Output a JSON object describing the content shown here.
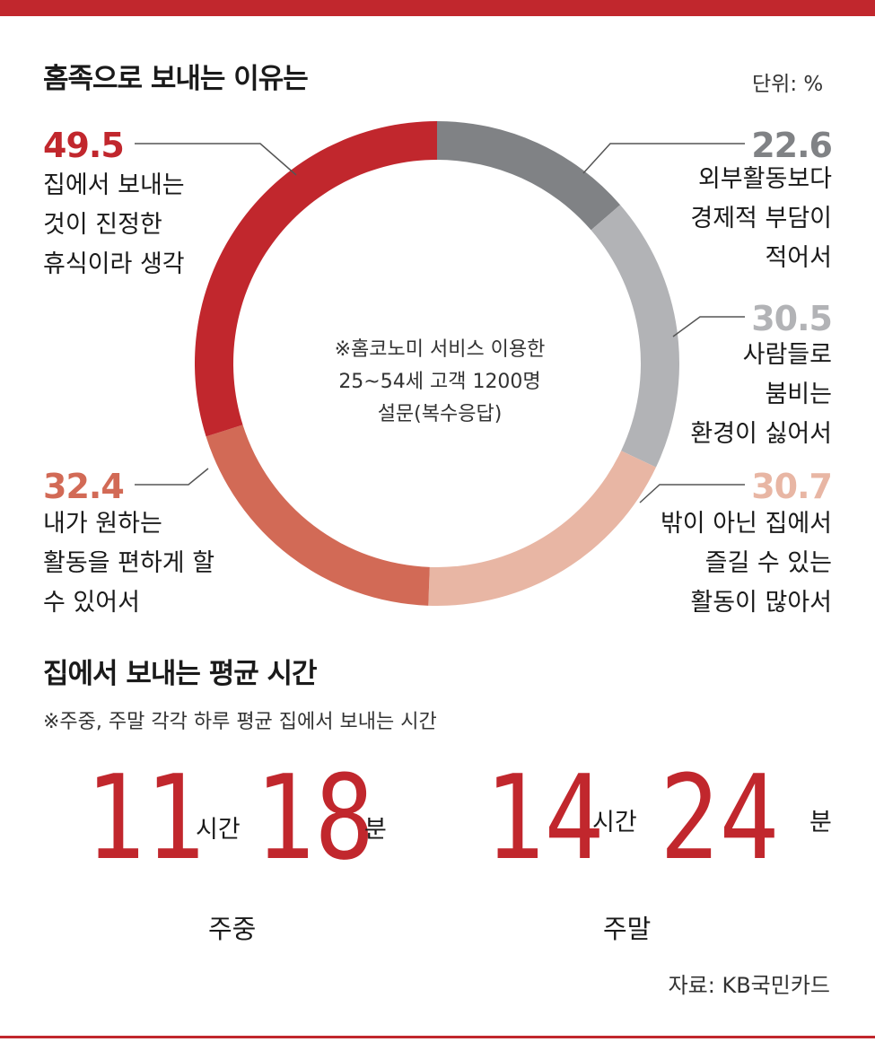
{
  "title": "홈족으로 보내는 이유는",
  "unit": "단위: %",
  "chart_data": {
    "type": "pie",
    "title": "홈족으로 보내는 이유는",
    "unit": "%",
    "note": "복수응답",
    "categories": [
      "외부활동보다 경제적 부담이 적어서",
      "사람들로 붐비는 환경이 싫어서",
      "밖이 아닌 집에서 즐길 수 있는 활동이 많아서",
      "내가 원하는 활동을 편하게 할 수 있어서",
      "집에서 보내는 것이 진정한 휴식이라 생각"
    ],
    "values": [
      22.6,
      30.5,
      30.7,
      32.4,
      49.5
    ],
    "colors": [
      "#808285",
      "#b2b3b6",
      "#e8b6a4",
      "#d26a56",
      "#c1272d"
    ]
  },
  "slices": [
    {
      "value": "22.6",
      "lines": [
        "외부활동보다",
        "경제적 부담이",
        "적어서"
      ],
      "color": "#808285"
    },
    {
      "value": "30.5",
      "lines": [
        "사람들로",
        "붐비는",
        "환경이 싫어서"
      ],
      "color": "#b2b3b6"
    },
    {
      "value": "30.7",
      "lines": [
        "밖이 아닌 집에서",
        "즐길 수 있는",
        "활동이 많아서"
      ],
      "color": "#e8b6a4"
    },
    {
      "value": "32.4",
      "lines": [
        "내가 원하는",
        "활동을 편하게 할",
        "수 있어서"
      ],
      "color": "#d26a56"
    },
    {
      "value": "49.5",
      "lines": [
        "집에서 보내는",
        "것이 진정한",
        "휴식이라 생각"
      ],
      "color": "#c1272d"
    }
  ],
  "center_note": [
    "※홈코노미 서비스 이용한",
    "25~54세 고객 1200명",
    "설문(복수응답)"
  ],
  "time_section": {
    "title": "집에서 보내는 평균 시간",
    "note": "※주중, 주말 각각 하루 평균 집에서 보내는 시간",
    "weekday": {
      "hours": "11",
      "minutes": "18",
      "label": "주중"
    },
    "weekend": {
      "hours": "14",
      "minutes": "24",
      "label": "주말"
    },
    "hour_unit": "시간",
    "minute_unit": "분"
  },
  "source": "자료: KB국민카드",
  "accent_color": "#c1272d"
}
